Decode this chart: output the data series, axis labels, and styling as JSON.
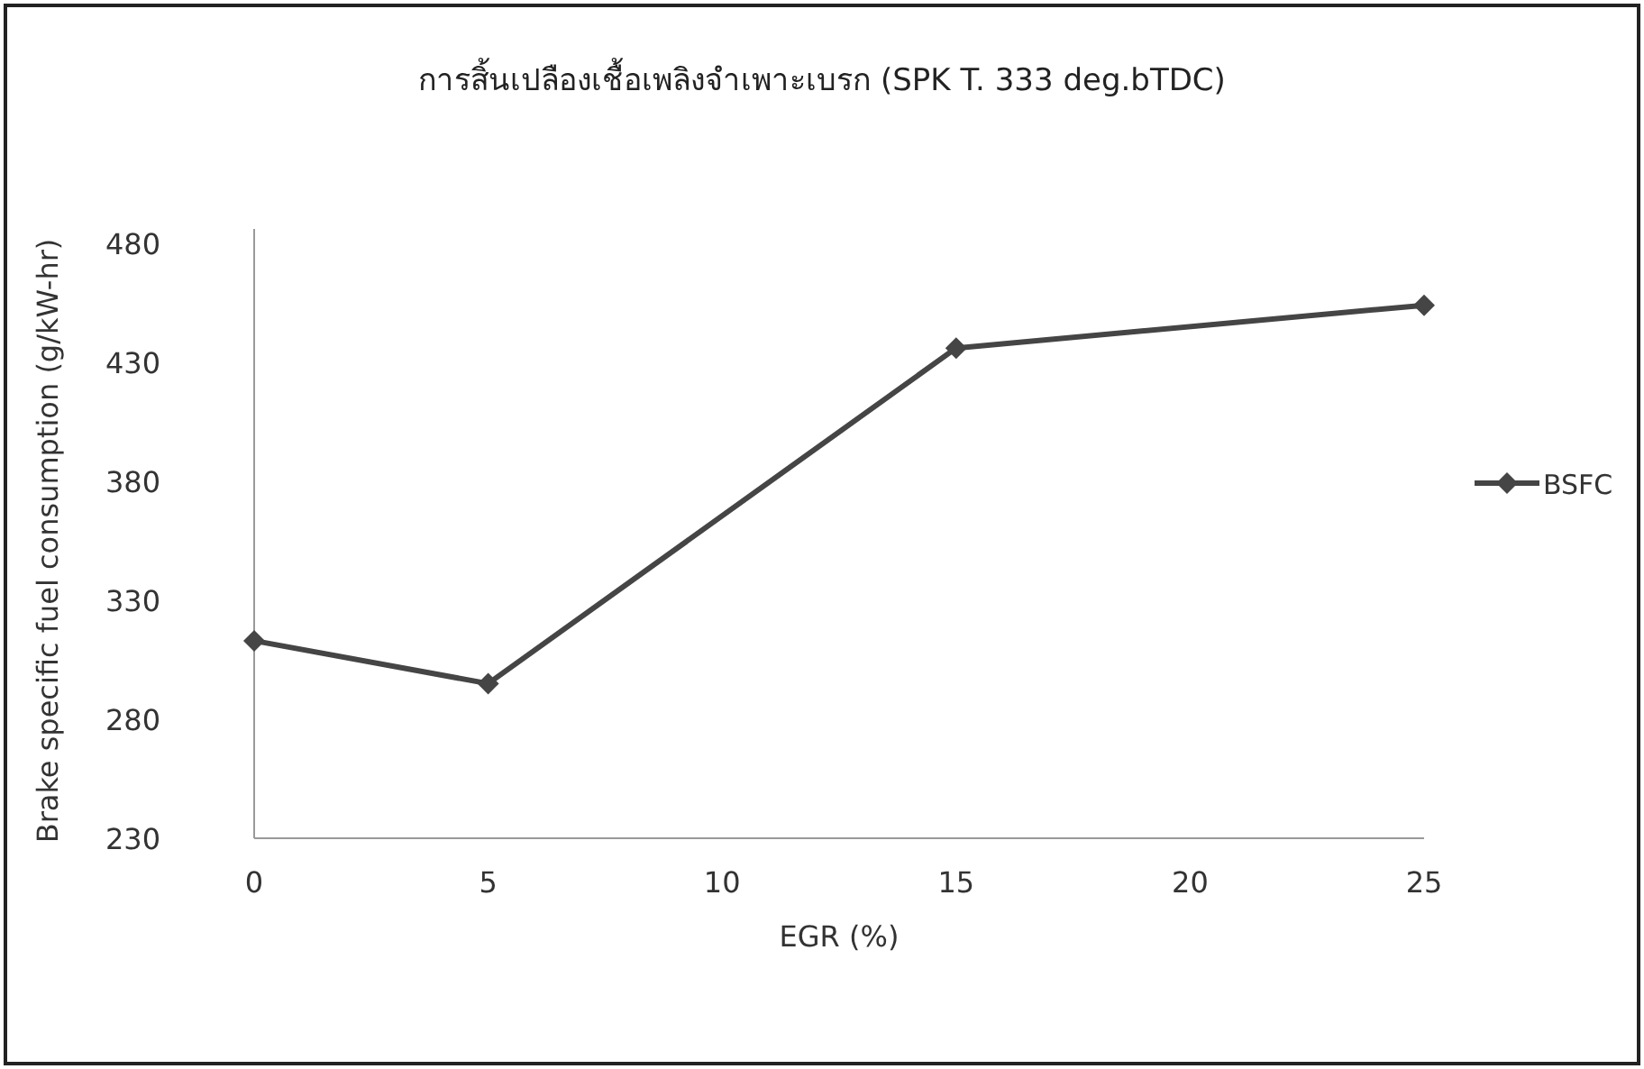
{
  "chart_data": {
    "type": "line",
    "title": "การสิ้นเปลืองเชื้อเพลิงจำเพาะเบรก (SPK T. 333 deg.bTDC)",
    "xlabel": "EGR (%)",
    "ylabel": "Brake specific fuel consumption (g/kW-hr)",
    "x": [
      0,
      5,
      15,
      25
    ],
    "series": [
      {
        "name": "BSFC",
        "color": "#454545",
        "values": [
          313,
          295,
          436,
          454
        ]
      }
    ],
    "xlim": [
      0,
      25
    ],
    "xticks": [
      0,
      5,
      10,
      15,
      20,
      25
    ],
    "ylim": [
      230,
      480
    ],
    "yticks": [
      230,
      280,
      330,
      380,
      430,
      480
    ],
    "grid": false,
    "legend": "right",
    "marker": "diamond",
    "line_style": "solid"
  }
}
